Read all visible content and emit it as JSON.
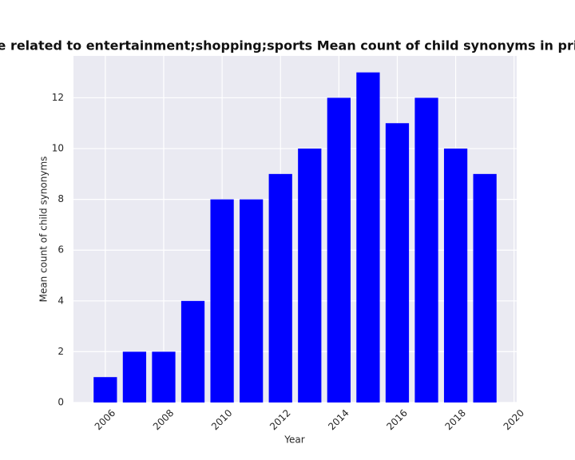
{
  "chart_data": {
    "type": "bar",
    "title": "ories are related to entertainment;shopping;sports Mean count of child synonyms in privacy po",
    "x_label": "Year",
    "y_label": "Mean count of child synonyms",
    "x": [
      2006,
      2007,
      2008,
      2009,
      2010,
      2011,
      2012,
      2013,
      2014,
      2015,
      2016,
      2017,
      2018,
      2019
    ],
    "values": [
      1,
      2,
      2,
      4,
      8,
      8,
      9,
      10,
      12,
      13,
      11,
      12,
      10,
      9
    ],
    "color": "#0000ff",
    "xlim": [
      2004.91,
      2020.09
    ],
    "xticks": [
      2006,
      2008,
      2010,
      2012,
      2014,
      2016,
      2018,
      2020
    ],
    "ylim": [
      0,
      13.65
    ],
    "yticks": [
      0,
      2,
      4,
      6,
      8,
      10,
      12
    ],
    "grid": true
  }
}
